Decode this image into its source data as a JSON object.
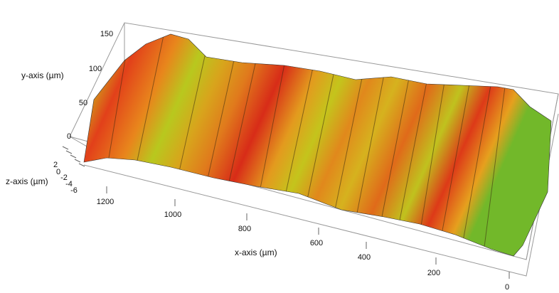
{
  "figure": {
    "y_axis": {
      "label": "y-axis (µm)",
      "ticks": [
        "150",
        "100",
        "50",
        "0"
      ]
    },
    "z_axis": {
      "label": "z-axis (µm)",
      "ticks": [
        "2",
        "0",
        "-2",
        "-4",
        "-6"
      ]
    },
    "x_axis": {
      "label": "x-axis (µm)",
      "ticks": [
        "1200",
        "1000",
        "800",
        "600",
        "400",
        "200",
        "0"
      ]
    }
  }
}
